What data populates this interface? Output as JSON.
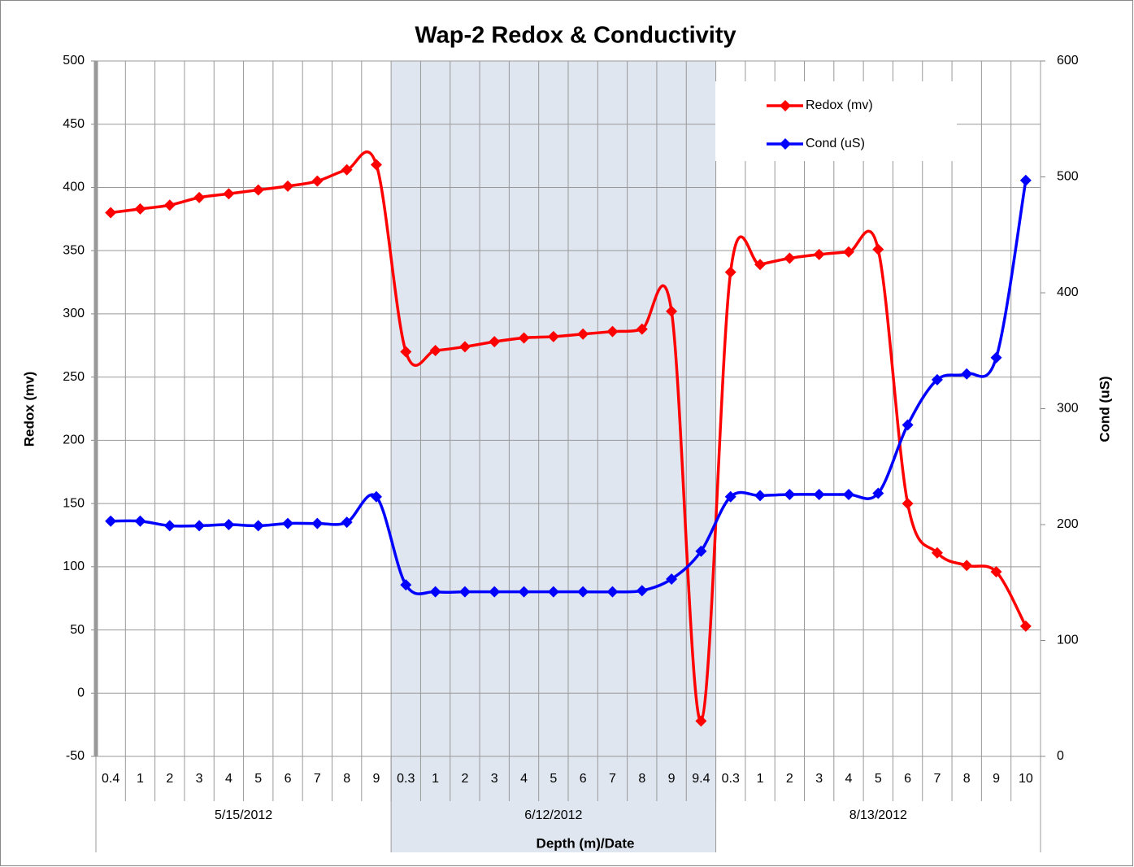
{
  "chart_data": {
    "type": "line",
    "title": "Wap-2 Redox & Conductivity",
    "x_label": "Depth (m)/Date",
    "y_label": "Redox (mv)",
    "y2_label": "Cond (uS)",
    "groups": [
      {
        "label": "5/15/2012",
        "categories": [
          "0.4",
          "1",
          "2",
          "3",
          "4",
          "5",
          "6",
          "7",
          "8",
          "9"
        ]
      },
      {
        "label": "6/12/2012",
        "background": "#dfe6f0",
        "categories": [
          "0.3",
          "1",
          "2",
          "3",
          "4",
          "5",
          "6",
          "7",
          "8",
          "9",
          "9.4"
        ]
      },
      {
        "label": "8/13/2012",
        "categories": [
          "0.3",
          "1",
          "2",
          "3",
          "4",
          "5",
          "6",
          "7",
          "8",
          "9",
          "10"
        ]
      }
    ],
    "series": [
      {
        "name": "Redox (mv)",
        "color": "#ff0000",
        "axis": "y",
        "values": [
          380,
          383,
          386,
          392,
          395,
          398,
          401,
          405,
          414,
          418,
          270,
          271,
          274,
          278,
          281,
          282,
          284,
          286,
          288,
          302,
          -22,
          333,
          339,
          344,
          347,
          349,
          351,
          150,
          111,
          101,
          96,
          53
        ]
      },
      {
        "name": "Cond (uS)",
        "color": "#0000ff",
        "axis": "y2",
        "values": [
          203,
          203,
          199,
          199,
          200,
          199,
          201,
          201,
          202,
          224,
          148,
          142,
          142,
          142,
          142,
          142,
          142,
          142,
          143,
          153,
          177,
          224,
          225,
          226,
          226,
          226,
          227,
          286,
          325,
          330,
          344,
          497
        ]
      }
    ],
    "ylim": [
      -50,
      500
    ],
    "yticks": [
      -50,
      0,
      50,
      100,
      150,
      200,
      250,
      300,
      350,
      400,
      450,
      500
    ],
    "y2lim": [
      0,
      600
    ],
    "y2ticks": [
      0,
      100,
      200,
      300,
      400,
      500,
      600
    ],
    "grid": true,
    "smooth": true,
    "legend": "top-right"
  }
}
